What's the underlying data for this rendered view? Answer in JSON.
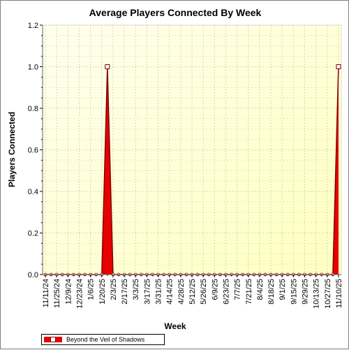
{
  "chart_data": {
    "type": "area",
    "title": "Average Players Connected By Week",
    "xlabel": "Week",
    "ylabel": "Players Connected",
    "ylim": [
      0,
      1.2
    ],
    "yticks": [
      "0.0",
      "0.2",
      "0.4",
      "0.6",
      "0.8",
      "1.0",
      "1.2"
    ],
    "grid": true,
    "legend_position": "bottom-left",
    "colors": {
      "series": "#e80000",
      "marker_edge": "#800000",
      "plot_bg_light": "#ffffee",
      "plot_bg_dark": "#ffffc0"
    },
    "x": [
      "11/11/24",
      "11/18/24",
      "11/25/24",
      "12/2/24",
      "12/9/24",
      "12/16/24",
      "12/23/24",
      "12/30/24",
      "1/6/25",
      "1/13/25",
      "1/20/25",
      "1/27/25",
      "2/3/25",
      "2/10/25",
      "2/17/25",
      "2/24/25",
      "3/3/25",
      "3/10/25",
      "3/17/25",
      "3/24/25",
      "3/31/25",
      "4/7/25",
      "4/14/25",
      "4/21/25",
      "4/28/25",
      "5/5/25",
      "5/12/25",
      "5/19/25",
      "5/26/25",
      "6/2/25",
      "6/9/25",
      "6/16/25",
      "6/23/25",
      "6/30/25",
      "7/7/25",
      "7/14/25",
      "7/21/25",
      "7/28/25",
      "8/4/25",
      "8/11/25",
      "8/18/25",
      "8/25/25",
      "9/1/25",
      "9/8/25",
      "9/15/25",
      "9/22/25",
      "9/29/25",
      "10/6/25",
      "10/13/25",
      "10/20/25",
      "10/27/25",
      "11/3/25",
      "11/10/25"
    ],
    "xtick_labels": [
      "11/11/24",
      "11/25/24",
      "12/9/24",
      "12/23/24",
      "1/6/25",
      "1/20/25",
      "2/3/25",
      "2/17/25",
      "3/3/25",
      "3/17/25",
      "3/31/25",
      "4/14/25",
      "4/28/25",
      "5/12/25",
      "5/26/25",
      "6/9/25",
      "6/23/25",
      "7/7/25",
      "7/21/25",
      "8/4/25",
      "8/18/25",
      "9/1/25",
      "9/15/25",
      "9/29/25",
      "10/13/25",
      "10/27/25",
      "11/10/25"
    ],
    "series": [
      {
        "name": "Beyond the Veil of Shadows",
        "values": [
          0,
          0,
          0,
          0,
          0,
          0,
          0,
          0,
          0,
          0,
          0,
          1,
          0,
          0,
          0,
          0,
          0,
          0,
          0,
          0,
          0,
          0,
          0,
          0,
          0,
          0,
          0,
          0,
          0,
          0,
          0,
          0,
          0,
          0,
          0,
          0,
          0,
          0,
          0,
          0,
          0,
          0,
          0,
          0,
          0,
          0,
          0,
          0,
          0,
          0,
          0,
          0,
          1
        ]
      }
    ]
  }
}
